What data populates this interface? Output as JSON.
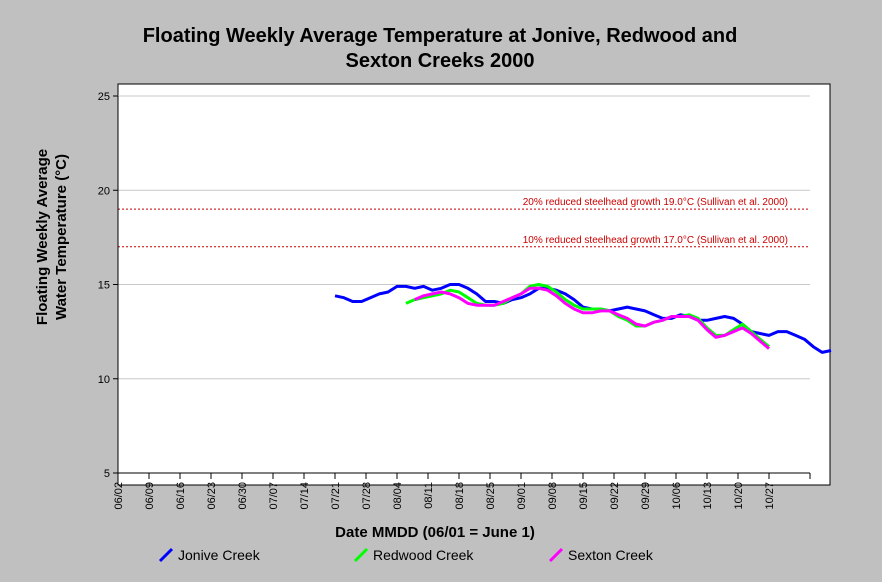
{
  "chart_data": {
    "type": "line",
    "title_line1": "Floating Weekly Average Temperature at Jonive, Redwood and",
    "title_line2": "Sexton Creeks 2000",
    "xlabel": "Date MMDD (06/01 = June 1)",
    "ylabel_line1": "Floating Weekly Average",
    "ylabel_line2": "Water Temperature (°C)",
    "x_ticks": [
      "06/02",
      "06/09",
      "06/16",
      "06/23",
      "06/30",
      "07/07",
      "07/14",
      "07/21",
      "07/28",
      "08/04",
      "08/11",
      "08/18",
      "08/25",
      "09/01",
      "09/08",
      "09/15",
      "09/22",
      "09/29",
      "10/06",
      "10/13",
      "10/20",
      "10/27"
    ],
    "xlim": [
      0,
      154
    ],
    "ylim": [
      5,
      25
    ],
    "y_ticks": [
      5,
      10,
      15,
      20,
      25
    ],
    "grid": "horizontal",
    "legend_position": "bottom",
    "reference_lines": [
      {
        "y": 19.0,
        "label": "20% reduced steelhead growth 19.0°C (Sullivan et al. 2000)",
        "color": "#cc0000"
      },
      {
        "y": 17.0,
        "label": "10% reduced steelhead growth 17.0°C (Sullivan et al. 2000)",
        "color": "#cc0000"
      }
    ],
    "series": [
      {
        "name": "Jonive Creek",
        "color": "#0000ff",
        "points": [
          [
            42,
            14.4
          ],
          [
            44,
            14.3
          ],
          [
            46,
            14.1
          ],
          [
            48,
            14.1
          ],
          [
            50,
            14.3
          ],
          [
            52,
            14.5
          ],
          [
            54,
            14.6
          ],
          [
            56,
            14.9
          ],
          [
            58,
            14.9
          ],
          [
            60,
            14.8
          ],
          [
            62,
            14.9
          ],
          [
            64,
            14.7
          ],
          [
            66,
            14.8
          ],
          [
            68,
            15.0
          ],
          [
            70,
            15.0
          ],
          [
            72,
            14.8
          ],
          [
            74,
            14.5
          ],
          [
            76,
            14.1
          ],
          [
            78,
            14.1
          ],
          [
            80,
            14.0
          ],
          [
            82,
            14.2
          ],
          [
            84,
            14.3
          ],
          [
            86,
            14.5
          ],
          [
            88,
            14.8
          ],
          [
            90,
            14.8
          ],
          [
            92,
            14.7
          ],
          [
            94,
            14.5
          ],
          [
            96,
            14.2
          ],
          [
            98,
            13.8
          ],
          [
            100,
            13.7
          ],
          [
            102,
            13.7
          ],
          [
            104,
            13.6
          ],
          [
            106,
            13.7
          ],
          [
            108,
            13.8
          ],
          [
            110,
            13.7
          ],
          [
            112,
            13.6
          ],
          [
            114,
            13.4
          ],
          [
            116,
            13.2
          ],
          [
            118,
            13.2
          ],
          [
            120,
            13.4
          ],
          [
            122,
            13.3
          ],
          [
            124,
            13.1
          ],
          [
            126,
            13.1
          ],
          [
            128,
            13.2
          ],
          [
            130,
            13.3
          ],
          [
            132,
            13.2
          ],
          [
            134,
            12.9
          ],
          [
            136,
            12.5
          ],
          [
            138,
            12.4
          ],
          [
            140,
            12.3
          ],
          [
            142,
            12.5
          ],
          [
            144,
            12.5
          ],
          [
            146,
            12.3
          ],
          [
            148,
            12.1
          ],
          [
            150,
            11.7
          ],
          [
            152,
            11.4
          ],
          [
            154,
            11.5
          ]
        ]
      },
      {
        "name": "Redwood Creek",
        "color": "#00ff00",
        "points": [
          [
            58,
            14.0
          ],
          [
            60,
            14.2
          ],
          [
            62,
            14.3
          ],
          [
            64,
            14.4
          ],
          [
            66,
            14.5
          ],
          [
            68,
            14.7
          ],
          [
            70,
            14.6
          ],
          [
            72,
            14.3
          ],
          [
            74,
            14.0
          ],
          [
            76,
            13.9
          ],
          [
            78,
            13.9
          ],
          [
            80,
            14.0
          ],
          [
            82,
            14.3
          ],
          [
            84,
            14.5
          ],
          [
            86,
            14.9
          ],
          [
            88,
            15.0
          ],
          [
            90,
            14.9
          ],
          [
            92,
            14.6
          ],
          [
            94,
            14.2
          ],
          [
            96,
            13.9
          ],
          [
            98,
            13.7
          ],
          [
            100,
            13.7
          ],
          [
            102,
            13.7
          ],
          [
            104,
            13.6
          ],
          [
            106,
            13.3
          ],
          [
            108,
            13.1
          ],
          [
            110,
            12.8
          ],
          [
            112,
            12.8
          ],
          [
            114,
            13.0
          ],
          [
            116,
            13.1
          ],
          [
            118,
            13.3
          ],
          [
            120,
            13.3
          ],
          [
            122,
            13.4
          ],
          [
            124,
            13.2
          ],
          [
            126,
            12.7
          ],
          [
            128,
            12.3
          ],
          [
            130,
            12.3
          ],
          [
            132,
            12.6
          ],
          [
            134,
            12.9
          ],
          [
            136,
            12.5
          ],
          [
            138,
            12.1
          ],
          [
            140,
            11.7
          ]
        ]
      },
      {
        "name": "Sexton Creek",
        "color": "#ff00ff",
        "points": [
          [
            60,
            14.2
          ],
          [
            62,
            14.4
          ],
          [
            64,
            14.5
          ],
          [
            66,
            14.6
          ],
          [
            68,
            14.5
          ],
          [
            70,
            14.3
          ],
          [
            72,
            14.0
          ],
          [
            74,
            13.9
          ],
          [
            76,
            13.9
          ],
          [
            78,
            13.9
          ],
          [
            80,
            14.1
          ],
          [
            82,
            14.3
          ],
          [
            84,
            14.5
          ],
          [
            86,
            14.8
          ],
          [
            88,
            14.8
          ],
          [
            90,
            14.7
          ],
          [
            92,
            14.4
          ],
          [
            94,
            14.0
          ],
          [
            96,
            13.7
          ],
          [
            98,
            13.5
          ],
          [
            100,
            13.5
          ],
          [
            102,
            13.6
          ],
          [
            104,
            13.6
          ],
          [
            106,
            13.4
          ],
          [
            108,
            13.2
          ],
          [
            110,
            12.9
          ],
          [
            112,
            12.8
          ],
          [
            114,
            13.0
          ],
          [
            116,
            13.1
          ],
          [
            118,
            13.3
          ],
          [
            120,
            13.3
          ],
          [
            122,
            13.3
          ],
          [
            124,
            13.1
          ],
          [
            126,
            12.6
          ],
          [
            128,
            12.2
          ],
          [
            130,
            12.3
          ],
          [
            132,
            12.5
          ],
          [
            134,
            12.7
          ],
          [
            136,
            12.4
          ],
          [
            138,
            12.0
          ],
          [
            140,
            11.6
          ]
        ]
      }
    ]
  }
}
